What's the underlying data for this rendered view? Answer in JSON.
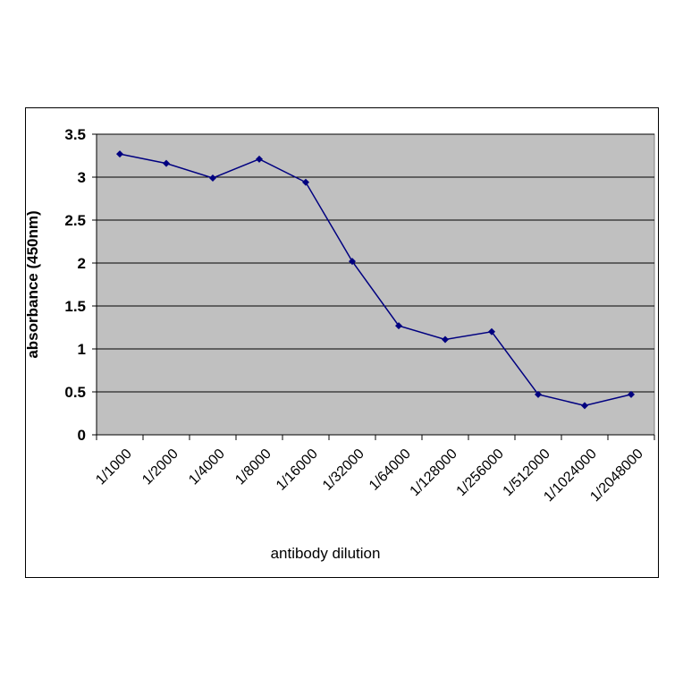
{
  "chart_data": {
    "type": "line",
    "x_label": "antibody dilution",
    "y_label": "absorbance (450nm)",
    "categories": [
      "1/1000",
      "1/2000",
      "1/4000",
      "1/8000",
      "1/16000",
      "1/32000",
      "1/64000",
      "1/128000",
      "1/256000",
      "1/512000",
      "1/1024000",
      "1/2048000"
    ],
    "series": [
      {
        "color": "#000080",
        "values": [
          3.27,
          3.16,
          2.99,
          3.21,
          2.94,
          2.02,
          1.27,
          1.11,
          1.2,
          0.47,
          0.34,
          0.47
        ]
      }
    ],
    "ylim": [
      0,
      3.5
    ],
    "yticks": [
      0,
      0.5,
      1,
      1.5,
      2,
      2.5,
      3,
      3.5
    ],
    "grid": true,
    "plot_background": "#c0c0c0"
  }
}
